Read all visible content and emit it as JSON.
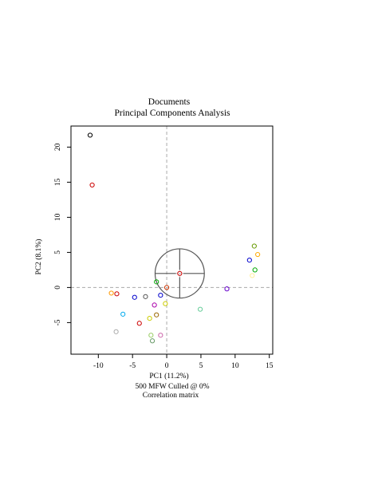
{
  "chart_data": {
    "type": "scatter",
    "title": "Documents",
    "subtitle": "Principal Components Analysis",
    "xlabel": "PC1 (11.2%)",
    "ylabel": "PC2 (8.1%)",
    "caption_lines": [
      "500 MFW  Culled @ 0%",
      "Correlation matrix"
    ],
    "xlim": [
      -14,
      15.5
    ],
    "ylim": [
      -9.5,
      23
    ],
    "x_ticks": [
      {
        "value": -10,
        "label": "-10"
      },
      {
        "value": -5,
        "label": "-5"
      },
      {
        "value": 0,
        "label": "0"
      },
      {
        "value": 5,
        "label": "5"
      },
      {
        "value": 10,
        "label": "10"
      },
      {
        "value": 15,
        "label": "15"
      }
    ],
    "y_ticks": [
      {
        "value": -5,
        "label": "-5"
      },
      {
        "value": 0,
        "label": "0"
      },
      {
        "value": 5,
        "label": "5"
      },
      {
        "value": 10,
        "label": "10"
      },
      {
        "value": 15,
        "label": "15"
      },
      {
        "value": 20,
        "label": "20"
      }
    ],
    "reference_lines": {
      "x": 0,
      "y": 0,
      "style": "dashed",
      "color": "#aaaaaa"
    },
    "centroid_marker": {
      "x": 1.9,
      "y": 2.0,
      "radius": 3.6,
      "color": "#555555"
    },
    "points": [
      {
        "x": -11.2,
        "y": 21.7,
        "color": "#000000"
      },
      {
        "x": -10.9,
        "y": 14.6,
        "color": "#cc0000"
      },
      {
        "x": 1.9,
        "y": 2.0,
        "color": "#cc0000"
      },
      {
        "x": -1.5,
        "y": 0.8,
        "color": "#00aa00"
      },
      {
        "x": 0.0,
        "y": 0.0,
        "color": "#cc3300"
      },
      {
        "x": -8.1,
        "y": -0.8,
        "color": "#ff9900"
      },
      {
        "x": -7.3,
        "y": -0.9,
        "color": "#cc0000"
      },
      {
        "x": -4.7,
        "y": -1.4,
        "color": "#0000cc"
      },
      {
        "x": -3.1,
        "y": -1.3,
        "color": "#555555"
      },
      {
        "x": -0.9,
        "y": -1.1,
        "color": "#0000cc"
      },
      {
        "x": -1.8,
        "y": -2.5,
        "color": "#aa00aa"
      },
      {
        "x": -0.2,
        "y": -2.3,
        "color": "#cccc00"
      },
      {
        "x": 4.9,
        "y": -3.1,
        "color": "#66cc99"
      },
      {
        "x": 8.8,
        "y": -0.2,
        "color": "#6600cc"
      },
      {
        "x": -6.4,
        "y": -3.8,
        "color": "#00aaee"
      },
      {
        "x": -2.5,
        "y": -4.4,
        "color": "#cccc00"
      },
      {
        "x": -1.5,
        "y": -3.9,
        "color": "#996600"
      },
      {
        "x": -4.0,
        "y": -5.1,
        "color": "#cc0000"
      },
      {
        "x": -7.4,
        "y": -6.3,
        "color": "#aaaaaa"
      },
      {
        "x": -2.3,
        "y": -6.8,
        "color": "#99cc66"
      },
      {
        "x": -2.1,
        "y": -7.6,
        "color": "#669966"
      },
      {
        "x": -0.9,
        "y": -6.8,
        "color": "#cc66aa"
      },
      {
        "x": 12.8,
        "y": 5.9,
        "color": "#669900"
      },
      {
        "x": 13.3,
        "y": 4.7,
        "color": "#ffaa00"
      },
      {
        "x": 12.1,
        "y": 3.9,
        "color": "#0000cc"
      },
      {
        "x": 12.9,
        "y": 2.5,
        "color": "#00aa00"
      },
      {
        "x": 12.5,
        "y": 1.7,
        "color": "#ffee99"
      }
    ]
  }
}
